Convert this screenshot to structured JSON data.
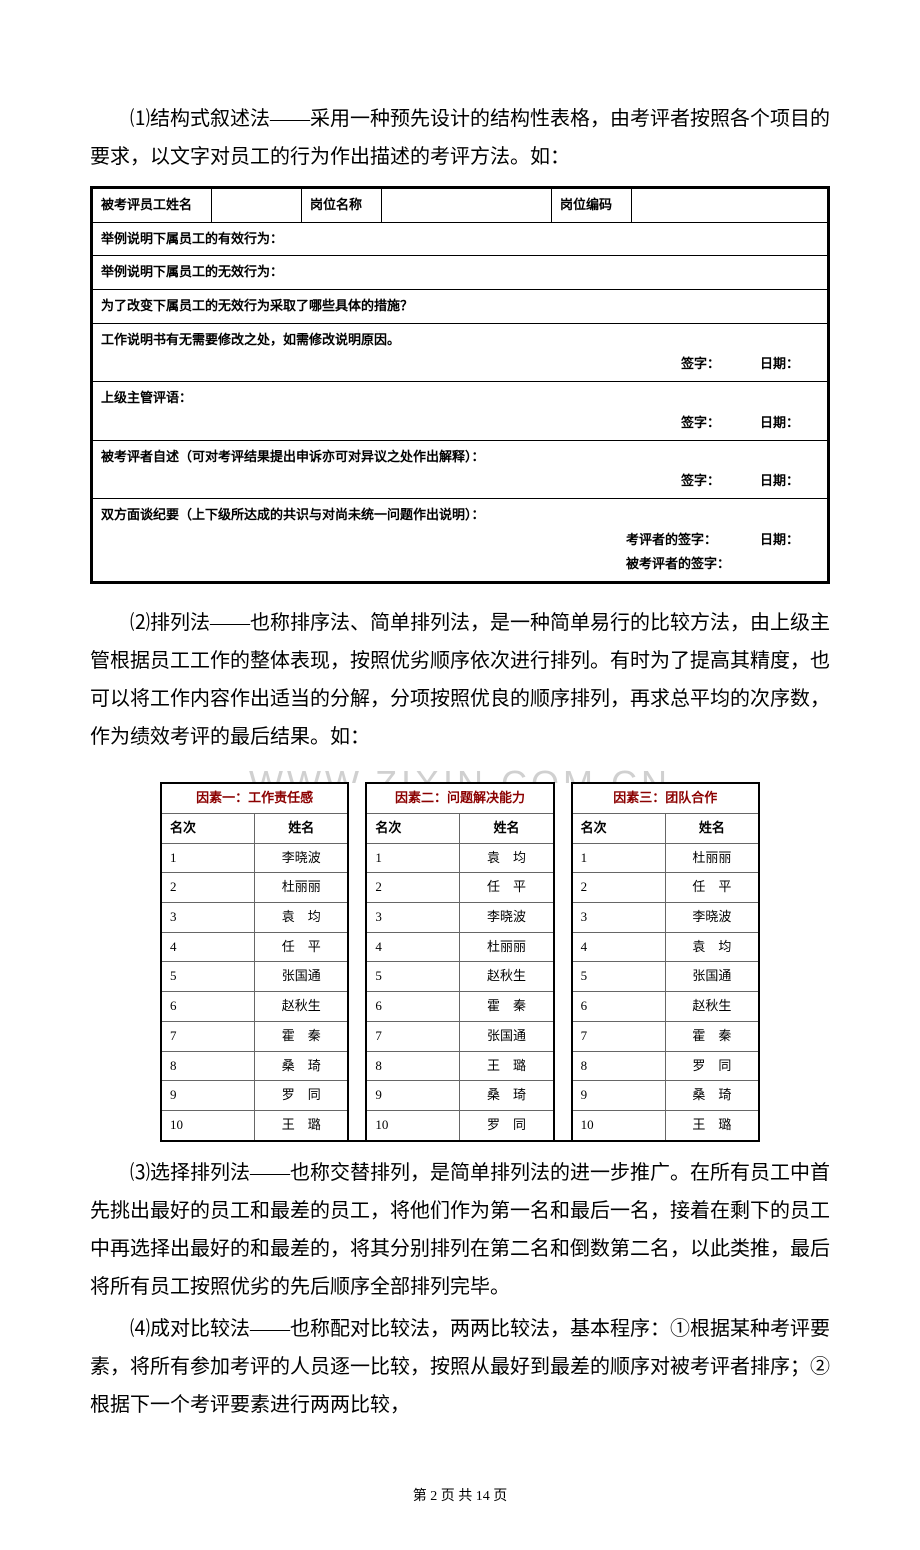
{
  "p1": "⑴结构式叙述法——采用一种预先设计的结构性表格，由考评者按照各个项目的要求，以文字对员工的行为作出描述的考评方法。如：",
  "form": {
    "r1c1": "被考评员工姓名",
    "r1c3": "岗位名称",
    "r1c5": "岗位编码",
    "r2": "举例说明下属员工的有效行为：",
    "r3": "举例说明下属员工的无效行为：",
    "r4": "为了改变下属员工的无效行为采取了哪些具体的措施？",
    "r5": "工作说明书有无需要修改之处，如需修改说明原因。",
    "r6": "上级主管评语：",
    "r7": "被考评者自述（可对考评结果提出申诉亦可对异议之处作出解释）：",
    "r8": "双方面谈纪要（上下级所达成的共识与对尚未统一问题作出说明）：",
    "sig": "签字：",
    "date": "日期：",
    "sig2a": "考评者的签字：",
    "sig2b": "被考评者的签字："
  },
  "p2": "⑵排列法——也称排序法、简单排列法，是一种简单易行的比较方法，由上级主管根据员工工作的整体表现，按照优劣顺序依次进行排列。有时为了提高其精度，也可以将工作内容作出适当的分解，分项按照优良的顺序排列，再求总平均的次序数，作为绩效考评的最后结果。如：",
  "watermark": "WWW.ZIXIN.COM.CN",
  "rank": {
    "factor1": "因素一：工作责任感",
    "factor2": "因素二：问题解决能力",
    "factor3": "因素三：团队合作",
    "rank_label": "名次",
    "name_label": "姓名",
    "header_color": "#8b0000",
    "border_color": "#666666",
    "col1": [
      "李晓波",
      "杜丽丽",
      "袁　均",
      "任　平",
      "张国通",
      "赵秋生",
      "霍　秦",
      "桑　琦",
      "罗　同",
      "王　璐"
    ],
    "col2": [
      "袁　均",
      "任　平",
      "李晓波",
      "杜丽丽",
      "赵秋生",
      "霍　秦",
      "张国通",
      "王　璐",
      "桑　琦",
      "罗　同"
    ],
    "col3": [
      "杜丽丽",
      "任　平",
      "李晓波",
      "袁　均",
      "张国通",
      "赵秋生",
      "霍　秦",
      "罗　同",
      "桑　琦",
      "王　璐"
    ]
  },
  "p3": "⑶选择排列法——也称交替排列，是简单排列法的进一步推广。在所有员工中首先挑出最好的员工和最差的员工，将他们作为第一名和最后一名，接着在剩下的员工中再选择出最好的和最差的，将其分别排列在第二名和倒数第二名，以此类推，最后将所有员工按照优劣的先后顺序全部排列完毕。",
  "p4": "⑷成对比较法——也称配对比较法，两两比较法，基本程序：①根据某种考评要素，将所有参加考评的人员逐一比较，按照从最好到最差的顺序对被考评者排序；②根据下一个考评要素进行两两比较，",
  "footer": "第 2 页 共 14 页"
}
